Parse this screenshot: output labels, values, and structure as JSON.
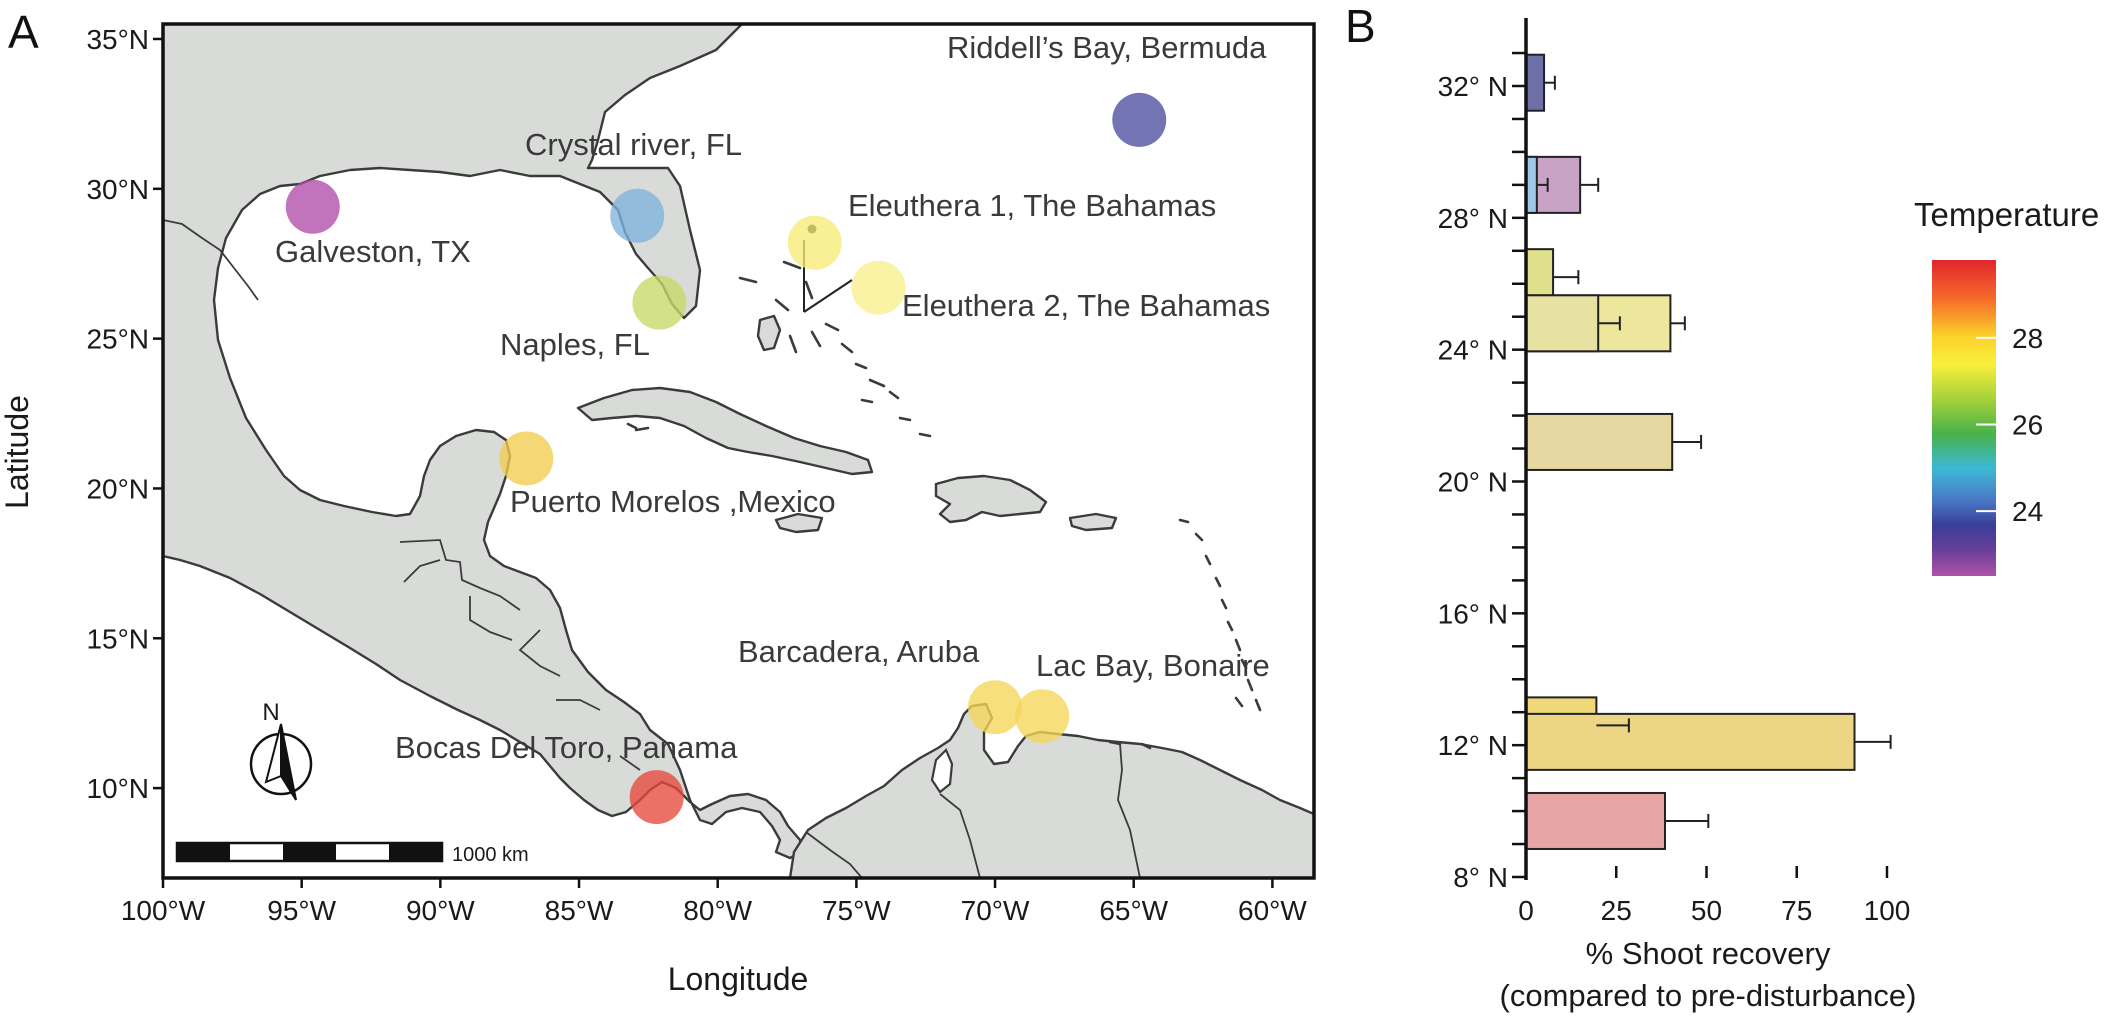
{
  "panels": {
    "a": "A",
    "b": "B"
  },
  "map": {
    "xlabel": "Longitude",
    "ylabel": "Latitude",
    "lon_range": [
      -100,
      -58.5
    ],
    "lat_range": [
      7,
      35.5
    ],
    "lon_ticks": [
      {
        "value": -100,
        "label": "100°W"
      },
      {
        "value": -95,
        "label": "95°W"
      },
      {
        "value": -90,
        "label": "90°W"
      },
      {
        "value": -85,
        "label": "85°W"
      },
      {
        "value": -80,
        "label": "80°W"
      },
      {
        "value": -75,
        "label": "75°W"
      },
      {
        "value": -70,
        "label": "70°W"
      },
      {
        "value": -65,
        "label": "65°W"
      },
      {
        "value": -60,
        "label": "60°W"
      }
    ],
    "lat_ticks": [
      {
        "value": 35,
        "label": "35°N"
      },
      {
        "value": 30,
        "label": "30°N"
      },
      {
        "value": 25,
        "label": "25°N"
      },
      {
        "value": 20,
        "label": "20°N"
      },
      {
        "value": 15,
        "label": "15°N"
      },
      {
        "value": 10,
        "label": "10°N"
      }
    ],
    "sites": [
      {
        "name": "Riddell’s Bay, Bermuda",
        "lon": -64.8,
        "lat": 32.3,
        "color": "#4b4d9e"
      },
      {
        "name": "Crystal river,  FL",
        "lon": -82.9,
        "lat": 29.1,
        "color": "#7fb2dc"
      },
      {
        "name": "Galveston, TX",
        "lon": -94.6,
        "lat": 29.4,
        "color": "#b04ca8"
      },
      {
        "name": "Eleuthera 1, The Bahamas",
        "lon": -76.5,
        "lat": 28.2,
        "color": "#f7ec78"
      },
      {
        "name": "Eleuthera 2, The Bahamas",
        "lon": -74.2,
        "lat": 26.7,
        "color": "#f8f08c"
      },
      {
        "name": "Naples, FL",
        "lon": -82.1,
        "lat": 26.2,
        "color": "#c7d866"
      },
      {
        "name": "Puerto Morelos ,Mexico",
        "lon": -86.9,
        "lat": 21.0,
        "color": "#f2cc4f"
      },
      {
        "name": "Barcadera, Aruba",
        "lon": -70.0,
        "lat": 12.7,
        "color": "#f5d65a"
      },
      {
        "name": "Lac Bay, Bonaire",
        "lon": -68.3,
        "lat": 12.4,
        "color": "#f5d65a"
      },
      {
        "name": "Bocas Del Toro, Panama",
        "lon": -82.2,
        "lat": 9.7,
        "color": "#e5493b"
      }
    ],
    "compass_label": "N",
    "scale_label": "1000 km"
  },
  "chart_data": {
    "type": "bar",
    "orientation": "horizontal",
    "xlabel": "% Shoot recovery",
    "xlabel2": "(compared to pre-disturbance)",
    "xlim": [
      0,
      100
    ],
    "x_ticks": [
      0,
      25,
      50,
      75,
      100
    ],
    "ylim": [
      8,
      33
    ],
    "y_ticks": [
      {
        "value": 32,
        "label": "32° N"
      },
      {
        "value": 28,
        "label": "28° N"
      },
      {
        "value": 24,
        "label": "24° N"
      },
      {
        "value": 20,
        "label": "20° N"
      },
      {
        "value": 16,
        "label": "16° N"
      },
      {
        "value": 12,
        "label": "12° N"
      },
      {
        "value": 8,
        "label": "8° N"
      }
    ],
    "bars": [
      {
        "lat": 32.1,
        "value": 5,
        "error": 3,
        "color": "#6f6fa8"
      },
      {
        "lat": 29.0,
        "value": 15,
        "error": 5,
        "color": "#c9a3c6"
      },
      {
        "lat": 29.0,
        "value": 3,
        "error": 3,
        "color": "#9ec9e6"
      },
      {
        "lat": 26.2,
        "value": 7.5,
        "error": 7,
        "color": "#dfe08c"
      },
      {
        "lat": 24.8,
        "value": 40,
        "error": 4,
        "color": "#ece79c"
      },
      {
        "lat": 24.8,
        "value": 20,
        "error": 6,
        "color": "#e8e2a2"
      },
      {
        "lat": 21.2,
        "value": 40.5,
        "error": 8,
        "color": "#e6d8a0"
      },
      {
        "lat": 12.6,
        "value": 19.5,
        "error": 9,
        "color": "#f0d878"
      },
      {
        "lat": 12.1,
        "value": 91,
        "error": 10,
        "color": "#ecd684"
      },
      {
        "lat": 9.7,
        "value": 38.5,
        "error": 12,
        "color": "#e8a5a5"
      }
    ]
  },
  "legend": {
    "title": "Temperature",
    "ticks": [
      {
        "value": 28,
        "label": "28"
      },
      {
        "value": 26,
        "label": "26"
      },
      {
        "value": 24,
        "label": "24"
      }
    ],
    "range": [
      22.5,
      29.8
    ]
  }
}
